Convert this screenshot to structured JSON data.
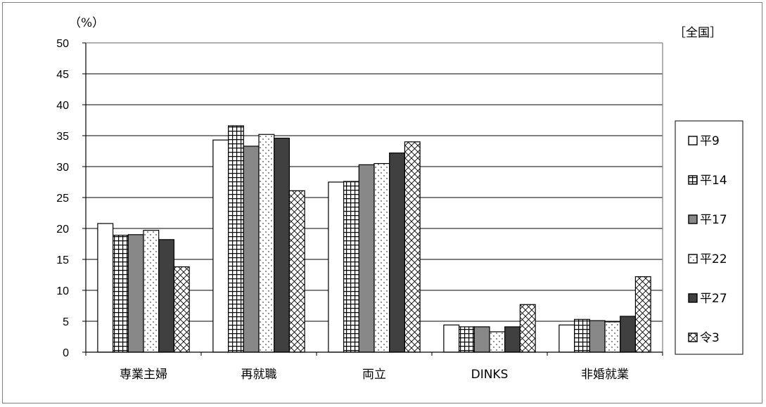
{
  "chart_data": {
    "type": "bar",
    "unit_label": "（%）",
    "region_label": "［全国］",
    "categories": [
      "専業主婦",
      "再就職",
      "両立",
      "DINKS",
      "非婚就業"
    ],
    "ylim": [
      0,
      50
    ],
    "yticks": [
      0,
      5,
      10,
      15,
      20,
      25,
      30,
      35,
      40,
      45,
      50
    ],
    "grid": true,
    "legend_position": "right",
    "series": [
      {
        "name": "平9",
        "pattern": "white",
        "values": [
          20.8,
          34.3,
          27.5,
          4.4,
          4.4
        ]
      },
      {
        "name": "平14",
        "pattern": "grid",
        "values": [
          18.9,
          36.6,
          27.6,
          4.1,
          5.3
        ]
      },
      {
        "name": "平17",
        "pattern": "gray",
        "values": [
          19.0,
          33.3,
          30.3,
          4.1,
          5.1
        ]
      },
      {
        "name": "平22",
        "pattern": "dots",
        "values": [
          19.7,
          35.2,
          30.5,
          3.3,
          4.9
        ]
      },
      {
        "name": "平27",
        "pattern": "dark",
        "values": [
          18.2,
          34.6,
          32.2,
          4.1,
          5.8
        ]
      },
      {
        "name": "令3",
        "pattern": "crosshatch",
        "values": [
          13.8,
          26.1,
          34.0,
          7.7,
          12.2
        ]
      }
    ]
  }
}
